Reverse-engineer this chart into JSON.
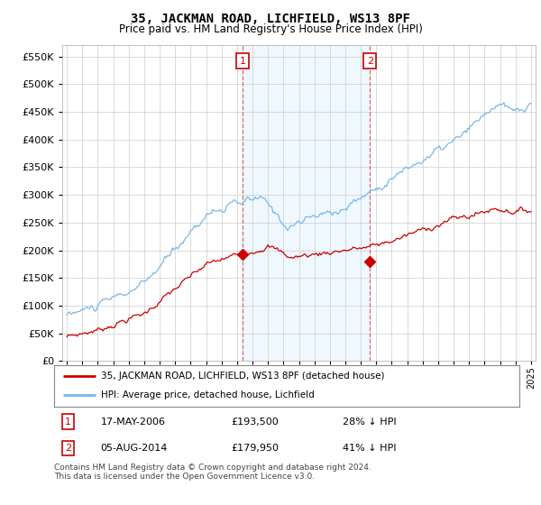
{
  "title": "35, JACKMAN ROAD, LICHFIELD, WS13 8PF",
  "subtitle": "Price paid vs. HM Land Registry's House Price Index (HPI)",
  "ylim": [
    0,
    570000
  ],
  "yticks": [
    0,
    50000,
    100000,
    150000,
    200000,
    250000,
    300000,
    350000,
    400000,
    450000,
    500000,
    550000
  ],
  "xlim_start": 1994.7,
  "xlim_end": 2025.3,
  "purchase1": {
    "date_num": 2006.37,
    "price": 193500,
    "label": "1"
  },
  "purchase2": {
    "date_num": 2014.59,
    "price": 179950,
    "label": "2"
  },
  "legend_line1": "35, JACKMAN ROAD, LICHFIELD, WS13 8PF (detached house)",
  "legend_line2": "HPI: Average price, detached house, Lichfield",
  "table_row1": [
    "1",
    "17-MAY-2006",
    "£193,500",
    "28% ↓ HPI"
  ],
  "table_row2": [
    "2",
    "05-AUG-2014",
    "£179,950",
    "41% ↓ HPI"
  ],
  "footer": "Contains HM Land Registry data © Crown copyright and database right 2024.\nThis data is licensed under the Open Government Licence v3.0.",
  "hpi_color": "#7ab8e8",
  "price_color": "#cc0000",
  "vline_color": "#dd6666",
  "shade_color": "#ddeeff",
  "marker_color": "#cc0000",
  "background_color": "#ffffff",
  "grid_color": "#cccccc",
  "box1_color": "#cc0000",
  "box2_color": "#cc0000"
}
